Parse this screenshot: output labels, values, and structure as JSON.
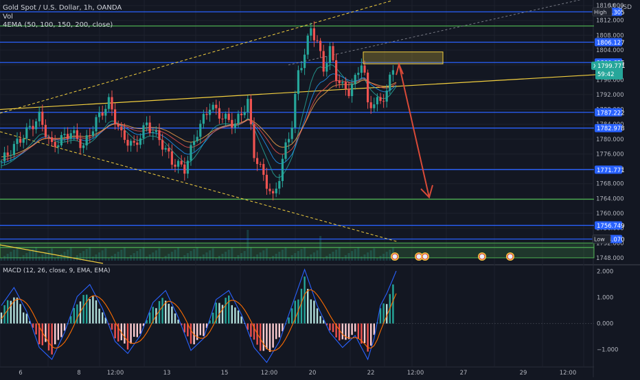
{
  "header": {
    "symbol_line": "Gold Spot / U.S. Dollar, 1h, OANDA",
    "vol_label": "Vol",
    "ema_line": "4EMA (50, 100, 150, 200, close)",
    "macd_line": "MACD (12, 26, close, 9, EMA, EMA)",
    "currency": "USD",
    "currency_mini": "18"
  },
  "colors": {
    "background": "#131722",
    "up": "#26a69a",
    "down": "#ef5350",
    "grid": "#1e222d",
    "hline_blue": "#2962ff",
    "hline_green": "#4caf50",
    "trend_yellow": "#f4d03f",
    "arrow": "#d94a38",
    "macd_line": "#2962ff",
    "signal_line": "#ff6d00"
  },
  "chart_data": [
    {
      "type": "candlestick",
      "title": "Gold Spot / U.S. Dollar, 1h, OANDA",
      "xlabel": "",
      "ylabel": "USD",
      "ylim": [
        1746.5,
        1817.5
      ],
      "grid": true,
      "x_tick_labels": [
        "6",
        "8",
        "12:00",
        "13",
        "15",
        "12:00",
        "20",
        "22",
        "12:00",
        "27",
        "29",
        "12:00"
      ],
      "y_tick_labels": [
        "1816.000",
        "1812.000",
        "1808.000",
        "1804.000",
        "1800.000",
        "1796.000",
        "1792.000",
        "1788.000",
        "1784.000",
        "1780.000",
        "1776.000",
        "1772.000",
        "1768.000",
        "1764.000",
        "1760.000",
        "1756.000",
        "1752.000",
        "1748.000"
      ],
      "price_path": [
        [
          0,
          1774
        ],
        [
          6,
          1780
        ],
        [
          12,
          1786
        ],
        [
          16,
          1778
        ],
        [
          22,
          1782
        ],
        [
          26,
          1778
        ],
        [
          30,
          1785
        ],
        [
          34,
          1790
        ],
        [
          38,
          1781
        ],
        [
          42,
          1778
        ],
        [
          46,
          1784
        ],
        [
          50,
          1780
        ],
        [
          54,
          1774
        ],
        [
          58,
          1772
        ],
        [
          62,
          1782
        ],
        [
          66,
          1789
        ],
        [
          70,
          1786
        ],
        [
          74,
          1784
        ],
        [
          78,
          1790
        ],
        [
          80,
          1776
        ],
        [
          82,
          1772
        ],
        [
          84,
          1768
        ],
        [
          86,
          1764
        ],
        [
          88,
          1770
        ],
        [
          90,
          1778
        ],
        [
          92,
          1784
        ],
        [
          94,
          1798
        ],
        [
          96,
          1803
        ],
        [
          98,
          1810
        ],
        [
          100,
          1806
        ],
        [
          102,
          1799
        ],
        [
          104,
          1804
        ],
        [
          106,
          1797
        ],
        [
          108,
          1794
        ],
        [
          110,
          1793
        ],
        [
          112,
          1796
        ],
        [
          114,
          1801
        ],
        [
          115,
          1797
        ],
        [
          116,
          1789
        ],
        [
          118,
          1790
        ],
        [
          120,
          1790
        ],
        [
          122,
          1793
        ],
        [
          124,
          1799
        ],
        [
          125,
          1799.8
        ]
      ],
      "horizontal_levels": [
        {
          "label": "1814.305",
          "value": 1814.305,
          "kind": "blue"
        },
        {
          "label": "1806.127",
          "value": 1806.127,
          "kind": "blue"
        },
        {
          "label": "1800.655",
          "value": 1800.655,
          "kind": "blue"
        },
        {
          "label": "1787.222",
          "value": 1787.222,
          "kind": "blue"
        },
        {
          "label": "1782.978",
          "value": 1782.978,
          "kind": "blue"
        },
        {
          "label": "1771.771",
          "value": 1771.771,
          "kind": "blue"
        },
        {
          "label": "1756.749",
          "value": 1756.749,
          "kind": "blue"
        },
        {
          "label": "1753.070",
          "value": 1753.07,
          "kind": "blue"
        },
        {
          "label": "",
          "value": 1810.5,
          "kind": "green"
        },
        {
          "label": "",
          "value": 1763.8,
          "kind": "green"
        },
        {
          "label": "",
          "value": 1750.8,
          "kind": "green"
        }
      ],
      "price_badges": {
        "high_label": "High",
        "high_value": "1814.305",
        "low_label": "Low",
        "low_value": "1753.070",
        "symbol": "XAUUSD",
        "last_price": "1799.771",
        "countdown": "59:42"
      }
    },
    {
      "type": "macd",
      "title": "MACD (12, 26, close, 9, EMA, EMA)",
      "ylim": [
        -1.8,
        2.2
      ],
      "y_tick_labels": [
        "2.000",
        "1.000",
        "0.000",
        "−1.000"
      ],
      "histogram_path": [
        [
          0,
          0.6
        ],
        [
          4,
          1.2
        ],
        [
          8,
          0.4
        ],
        [
          12,
          -0.8
        ],
        [
          16,
          -1.2
        ],
        [
          20,
          -0.3
        ],
        [
          24,
          0.9
        ],
        [
          28,
          1.3
        ],
        [
          32,
          0.5
        ],
        [
          36,
          -0.6
        ],
        [
          40,
          -1.0
        ],
        [
          44,
          -0.4
        ],
        [
          48,
          0.7
        ],
        [
          52,
          1.1
        ],
        [
          56,
          0.2
        ],
        [
          60,
          -0.9
        ],
        [
          64,
          -0.5
        ],
        [
          68,
          0.8
        ],
        [
          72,
          1.1
        ],
        [
          76,
          0.3
        ],
        [
          80,
          -0.8
        ],
        [
          84,
          -1.3
        ],
        [
          88,
          -0.6
        ],
        [
          92,
          0.6
        ],
        [
          96,
          1.8
        ],
        [
          98,
          1.2
        ],
        [
          100,
          0.6
        ],
        [
          104,
          -0.3
        ],
        [
          108,
          -0.8
        ],
        [
          112,
          -0.4
        ],
        [
          116,
          -1.2
        ],
        [
          118,
          -0.5
        ],
        [
          120,
          0.6
        ],
        [
          122,
          1.0
        ],
        [
          125,
          1.75
        ]
      ]
    }
  ]
}
